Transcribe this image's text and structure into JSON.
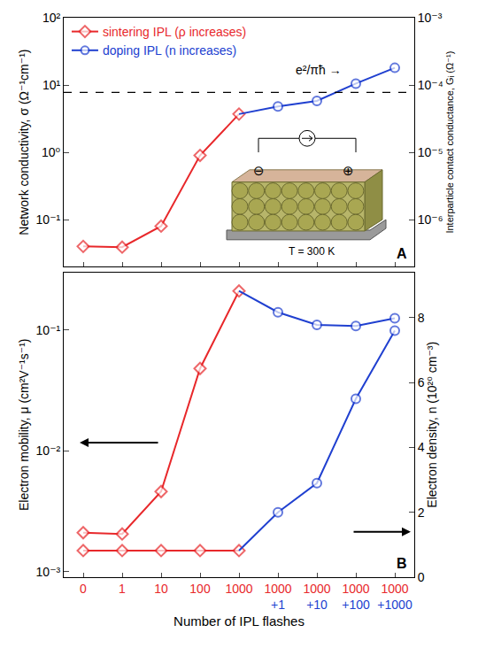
{
  "chart_data": [
    {
      "label": "A",
      "type": "line",
      "log": true,
      "grid": false,
      "legend": "upper left",
      "tick_labels": "y",
      "categories": [
        "0",
        "1",
        "10",
        "100",
        "1000",
        "1000\n+1",
        "1000\n+10",
        "1000\n+100",
        "1000\n+1000"
      ],
      "ylabel": "Network conductivity, σ (Ω⁻¹cm⁻¹)",
      "y2label": "Interparticle contact conductance, Gᵢ (Ω⁻¹)",
      "ylim": [
        0.02,
        100
      ],
      "yticks": [
        {
          "value": 0.1,
          "label": "10⁻¹"
        },
        {
          "value": 1,
          "label": "10⁰"
        },
        {
          "value": 10,
          "label": "10¹"
        },
        {
          "value": 100,
          "label": "10²"
        }
      ],
      "y2lim": [
        2e-07,
        0.001
      ],
      "y2ticks": [
        {
          "value": 1e-06,
          "label": "10⁻⁶"
        },
        {
          "value": 1e-05,
          "label": "10⁻⁵"
        },
        {
          "value": 0.0001,
          "label": "10⁻⁴"
        },
        {
          "value": 0.001,
          "label": "10⁻³"
        }
      ],
      "series": [
        {
          "name": "sintering IPL (ρ increases)",
          "color": "#e8282b",
          "marker": "diamond",
          "values": [
            0.04,
            0.039,
            0.08,
            0.9,
            3.7,
            null,
            null,
            null,
            null
          ]
        },
        {
          "name": "doping IPL (n increases)",
          "color": "#2040d0",
          "marker": "circle",
          "values": [
            null,
            null,
            null,
            null,
            3.7,
            4.8,
            5.8,
            10.5,
            18
          ]
        }
      ],
      "reference": {
        "value": 7.75e-05,
        "axis": "y2",
        "label": "e²/πħ →",
        "line_style": "dashed"
      },
      "inset": {
        "minus": "⊖",
        "plus": "⊕",
        "label": "T = 300 K"
      }
    },
    {
      "label": "B",
      "type": "line",
      "log": "y",
      "grid": false,
      "categories": [
        "0",
        "1",
        "10",
        "100",
        "1000",
        "1000\n+1",
        "1000\n+10",
        "1000\n+100",
        "1000\n+1000"
      ],
      "xlabel": "Number of IPL flashes",
      "ylabel": "Electron mobility, μ (cm²V⁻¹s⁻¹)",
      "y2label": "Electron density, n (10²⁰ cm⁻³)",
      "ylim": [
        0.0009,
        0.3
      ],
      "yticks": [
        {
          "value": 0.001,
          "label": "10⁻³"
        },
        {
          "value": 0.01,
          "label": "10⁻²"
        },
        {
          "value": 0.1,
          "label": "10⁻¹"
        }
      ],
      "y2lim": [
        0,
        9.4
      ],
      "y2ticks": [
        0,
        2,
        4,
        6,
        8
      ],
      "series": [
        {
          "color": "#e8282b",
          "marker": "diamond",
          "values": [
            0.0021,
            0.00205,
            0.0046,
            0.048,
            0.21,
            null,
            null,
            null,
            null
          ]
        },
        {
          "color": "#2040d0",
          "marker": "circle",
          "values": [
            null,
            null,
            null,
            null,
            0.21,
            0.14,
            0.11,
            0.108,
            0.125
          ]
        },
        {
          "color": "#e8282b",
          "marker": "diamond",
          "axis": "y2",
          "values": [
            0.82,
            0.82,
            0.82,
            0.82,
            0.82,
            null,
            null,
            null,
            null
          ]
        },
        {
          "color": "#2040d0",
          "marker": "circle",
          "axis": "y2",
          "values": [
            null,
            null,
            null,
            null,
            0.82,
            2.0,
            2.9,
            5.5,
            7.6
          ]
        }
      ]
    }
  ]
}
